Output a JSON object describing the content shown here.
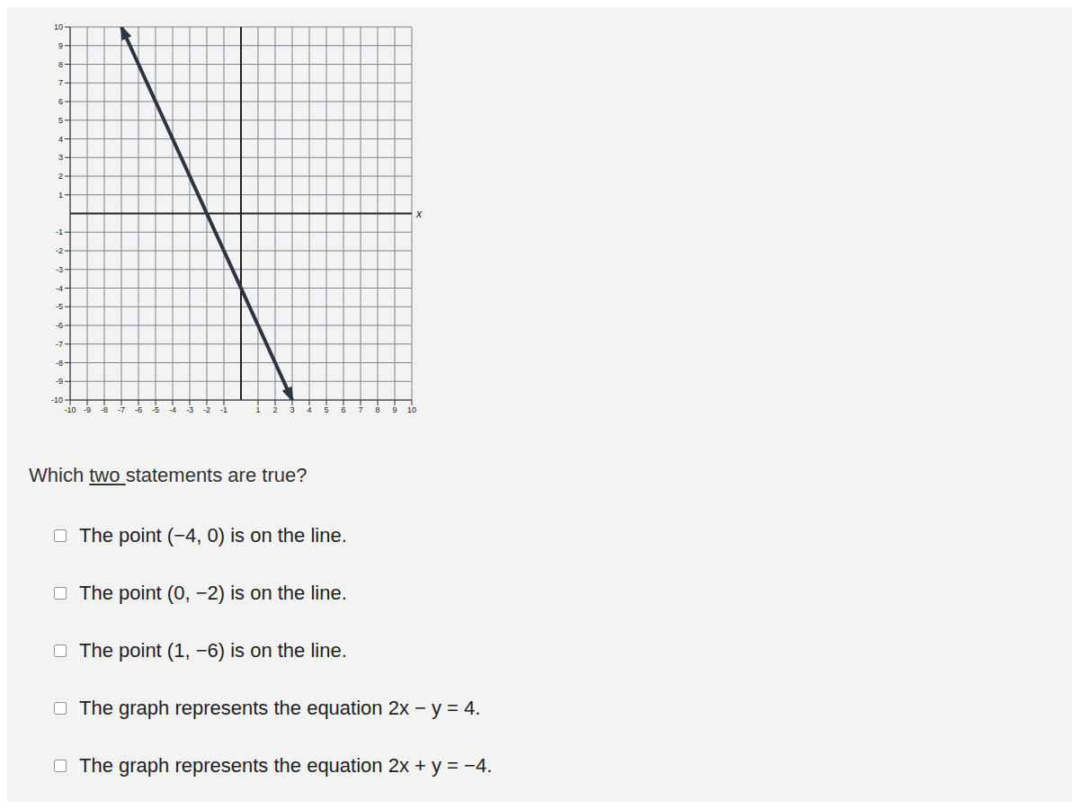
{
  "chart_data": {
    "type": "line",
    "x": [
      -7,
      3
    ],
    "values": [
      10,
      -10
    ],
    "color": "#2b3440",
    "marker": "arrow",
    "x_label": "x",
    "xlim": [
      -10,
      10
    ],
    "ylim": [
      -10,
      10
    ],
    "xticks": [
      -10,
      -9,
      -8,
      -7,
      -6,
      -5,
      -4,
      -3,
      -2,
      -1,
      1,
      2,
      3,
      4,
      5,
      6,
      7,
      8,
      9,
      10
    ],
    "yticks": [
      -10,
      -9,
      -8,
      -7,
      -6,
      -5,
      -4,
      -3,
      -2,
      -1,
      1,
      2,
      3,
      4,
      5,
      6,
      7,
      8,
      9,
      10
    ],
    "grid": true,
    "annotations": [
      "Which two statements are true?",
      "The point (−4, 0) is on the line.",
      "The point (0, −2) is on the line.",
      "The point (1, −6) is on the line.",
      "The graph represents the equation 2x − y = 4.",
      "The graph represents the equation 2x + y = −4."
    ]
  }
}
